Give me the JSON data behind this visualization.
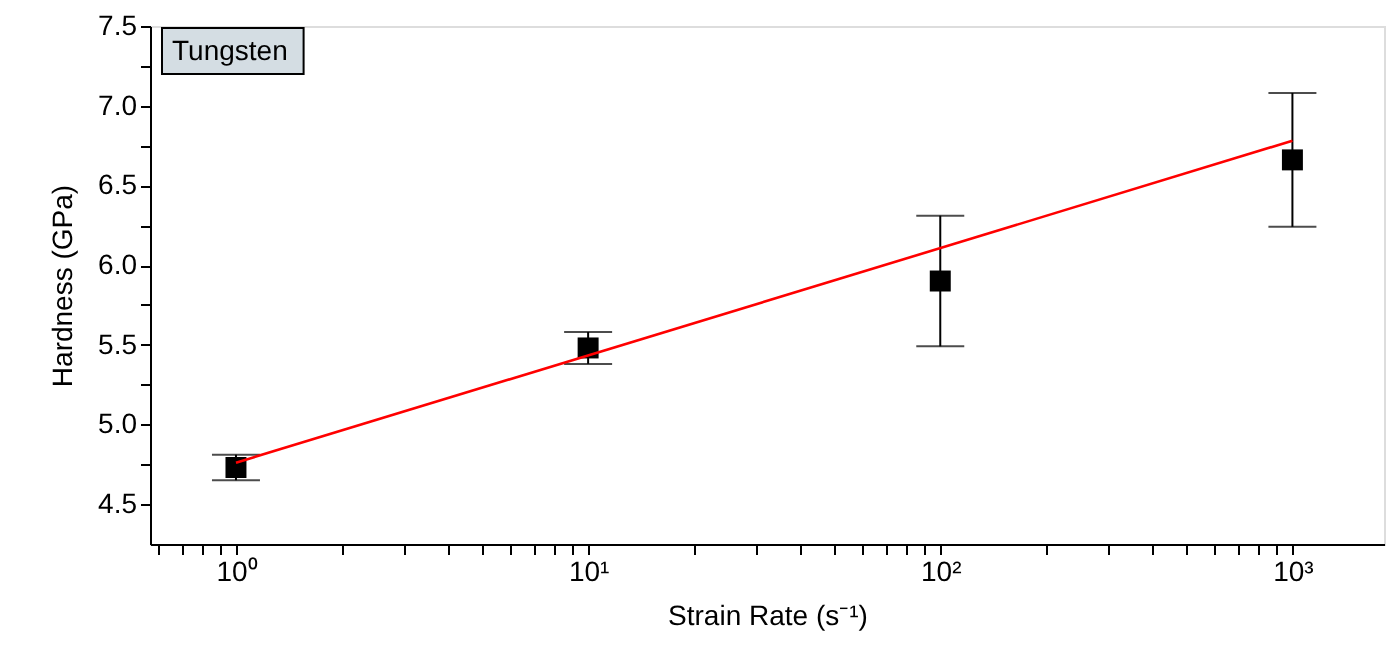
{
  "chart_data": {
    "type": "scatter",
    "xlabel": "Strain Rate (s⁻¹)",
    "ylabel": "Hardness (GPa)",
    "annotations": [
      "Tungsten"
    ],
    "x": [
      1,
      10,
      100,
      1000
    ],
    "series": [
      {
        "type": "scatter",
        "color": "#000000",
        "marker": "square",
        "values": [
          4.73,
          5.48,
          5.9,
          6.66
        ],
        "errors": [
          0.08,
          0.1,
          0.41,
          0.42
        ]
      },
      {
        "type": "line",
        "color": "#ff0000",
        "x": [
          1,
          1000
        ],
        "values": [
          4.76,
          6.78
        ]
      }
    ],
    "log": "x",
    "xlim": [
      0.57,
      1820
    ],
    "ylim": [
      4.25,
      7.5
    ],
    "xticks": [
      {
        "value": 0.6,
        "label": null
      },
      {
        "value": 0.7,
        "label": null
      },
      {
        "value": 0.8,
        "label": null
      },
      {
        "value": 0.9,
        "label": null
      },
      {
        "value": 1,
        "label": "10⁰"
      },
      {
        "value": 2,
        "label": null
      },
      {
        "value": 3,
        "label": null
      },
      {
        "value": 4,
        "label": null
      },
      {
        "value": 5,
        "label": null
      },
      {
        "value": 6,
        "label": null
      },
      {
        "value": 7,
        "label": null
      },
      {
        "value": 8,
        "label": null
      },
      {
        "value": 9,
        "label": null
      },
      {
        "value": 10,
        "label": "10¹"
      },
      {
        "value": 20,
        "label": null
      },
      {
        "value": 30,
        "label": null
      },
      {
        "value": 40,
        "label": null
      },
      {
        "value": 50,
        "label": null
      },
      {
        "value": 60,
        "label": null
      },
      {
        "value": 70,
        "label": null
      },
      {
        "value": 80,
        "label": null
      },
      {
        "value": 90,
        "label": null
      },
      {
        "value": 100,
        "label": "10²"
      },
      {
        "value": 200,
        "label": null
      },
      {
        "value": 300,
        "label": null
      },
      {
        "value": 400,
        "label": null
      },
      {
        "value": 500,
        "label": null
      },
      {
        "value": 600,
        "label": null
      },
      {
        "value": 700,
        "label": null
      },
      {
        "value": 800,
        "label": null
      },
      {
        "value": 900,
        "label": null
      },
      {
        "value": 1000,
        "label": "10³"
      }
    ],
    "yticks": [
      {
        "value": 4.5,
        "label": "4.5"
      },
      {
        "value": 4.75,
        "label": null
      },
      {
        "value": 5.0,
        "label": "5.0"
      },
      {
        "value": 5.25,
        "label": null
      },
      {
        "value": 5.5,
        "label": "5.5"
      },
      {
        "value": 5.75,
        "label": null
      },
      {
        "value": 6.0,
        "label": "6.0"
      },
      {
        "value": 6.25,
        "label": null
      },
      {
        "value": 6.5,
        "label": "6.5"
      },
      {
        "value": 6.75,
        "label": null
      },
      {
        "value": 7.0,
        "label": "7.0"
      },
      {
        "value": 7.25,
        "label": null
      },
      {
        "value": 7.5,
        "label": "7.5"
      }
    ],
    "grid": false
  }
}
